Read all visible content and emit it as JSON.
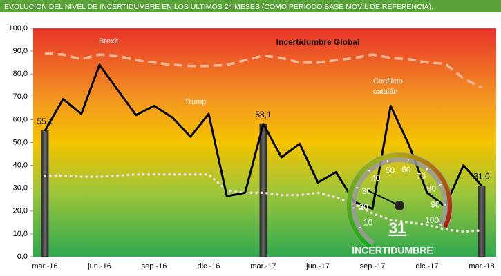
{
  "title": "EVOLUCIÓN DEL NIVEL DE INCERTIDUMBRE EN LOS ÚLTIMOS 24 MESES (COMO PERIODO BASE MOVIL DE REFERENCIA).",
  "chart_data": {
    "type": "line",
    "categories": [
      "mar.-16",
      null,
      null,
      "jun.-16",
      null,
      null,
      "sep.-16",
      null,
      null,
      "dic.-16",
      null,
      null,
      "mar.-17",
      null,
      null,
      "jun.-17",
      null,
      null,
      "sep.-17",
      null,
      null,
      "dic.-17",
      null,
      null,
      "mar.-18"
    ],
    "series": [
      {
        "name": "Incertidumbre Global",
        "type": "line",
        "color": "#000000",
        "values": [
          55.1,
          69,
          62.5,
          84,
          73,
          62,
          66,
          61,
          52.5,
          62.5,
          26.5,
          28,
          58.1,
          43.5,
          49.5,
          32.5,
          37,
          24,
          21,
          66,
          49,
          28,
          22,
          40,
          31.0
        ]
      },
      {
        "type": "line",
        "style": "dashed",
        "color": "#f4b99a",
        "values": [
          89,
          88.5,
          86.5,
          88.5,
          88,
          86,
          85,
          84,
          83.5,
          83.5,
          84,
          86,
          88,
          87,
          85,
          85,
          86,
          87,
          88.5,
          87,
          86.5,
          85,
          84.5,
          78,
          74
        ]
      },
      {
        "type": "line",
        "style": "dotted",
        "color": "#f3dede",
        "values": [
          35.5,
          35.5,
          35,
          35,
          35.5,
          36,
          36,
          36,
          36,
          36,
          29,
          28,
          28,
          27,
          27,
          28,
          26,
          23,
          19,
          16,
          15,
          14,
          12,
          11,
          11.5
        ]
      },
      {
        "type": "bar",
        "color": "#3f3f3f",
        "values": [
          55.1,
          null,
          null,
          null,
          null,
          null,
          null,
          null,
          null,
          null,
          null,
          null,
          58.1,
          null,
          null,
          null,
          null,
          null,
          null,
          null,
          null,
          null,
          null,
          null,
          31.0
        ],
        "value_labels": [
          "55,1",
          null,
          null,
          null,
          null,
          null,
          null,
          null,
          null,
          null,
          null,
          null,
          "58,1",
          null,
          null,
          null,
          null,
          null,
          null,
          null,
          null,
          null,
          null,
          null,
          "31,0"
        ]
      }
    ],
    "ylim": [
      0,
      100
    ],
    "yticks": [
      {
        "value": 0,
        "label": "0,0"
      },
      {
        "value": 10,
        "label": "10,0"
      },
      {
        "value": 20,
        "label": "20,0"
      },
      {
        "value": 30,
        "label": "30,0"
      },
      {
        "value": 40,
        "label": "40,0"
      },
      {
        "value": 50,
        "label": "50,0"
      },
      {
        "value": 60,
        "label": "60,0"
      },
      {
        "value": 70,
        "label": "70,0"
      },
      {
        "value": 80,
        "label": "80,0"
      },
      {
        "value": 90,
        "label": "90,0"
      },
      {
        "value": 100,
        "label": "100,0"
      }
    ],
    "annotations": [
      "Brexit",
      "Trump",
      "Conflicto",
      "catalán"
    ],
    "gauge": {
      "value": 31,
      "label": "INCERTIDUMBRE",
      "range": [
        0,
        100
      ],
      "ticks": [
        10,
        20,
        30,
        40,
        50,
        60,
        70,
        80,
        90,
        100
      ]
    }
  }
}
